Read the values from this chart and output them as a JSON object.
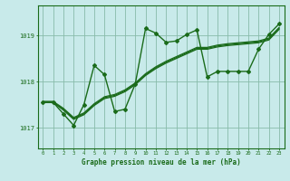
{
  "title": "Graphe pression niveau de la mer (hPa)",
  "background_color": "#c8eaea",
  "plot_bg_color": "#c8eaea",
  "grid_color": "#88bbaa",
  "line_color": "#1a6b1a",
  "xlim": [
    -0.5,
    23.5
  ],
  "ylim": [
    1016.55,
    1019.65
  ],
  "yticks": [
    1017,
    1018,
    1019
  ],
  "xticks": [
    0,
    1,
    2,
    3,
    4,
    5,
    6,
    7,
    8,
    9,
    10,
    11,
    12,
    13,
    14,
    15,
    16,
    17,
    18,
    19,
    20,
    21,
    22,
    23
  ],
  "series1_x": [
    0,
    1,
    2,
    3,
    4,
    5,
    6,
    7,
    8,
    9,
    10,
    11,
    12,
    13,
    14,
    15,
    16,
    17,
    18,
    19,
    20,
    21,
    22,
    23
  ],
  "series1_y": [
    1017.55,
    1017.55,
    1017.4,
    1017.2,
    1017.3,
    1017.5,
    1017.65,
    1017.7,
    1017.8,
    1017.95,
    1018.15,
    1018.3,
    1018.42,
    1018.52,
    1018.62,
    1018.72,
    1018.72,
    1018.77,
    1018.8,
    1018.82,
    1018.84,
    1018.86,
    1018.92,
    1019.15
  ],
  "series2_x": [
    0,
    1,
    2,
    3,
    4,
    5,
    6,
    7,
    8,
    9,
    10,
    11,
    12,
    13,
    14,
    15,
    16,
    17,
    18,
    19,
    20,
    21,
    22,
    23
  ],
  "series2_y": [
    1017.57,
    1017.57,
    1017.42,
    1017.22,
    1017.32,
    1017.52,
    1017.67,
    1017.72,
    1017.82,
    1017.97,
    1018.17,
    1018.32,
    1018.44,
    1018.54,
    1018.64,
    1018.74,
    1018.74,
    1018.79,
    1018.82,
    1018.84,
    1018.86,
    1018.88,
    1018.94,
    1019.17
  ],
  "series3_x": [
    0,
    1,
    2,
    3,
    4,
    5,
    6,
    7,
    8,
    9,
    10,
    11,
    12,
    13,
    14,
    15,
    16,
    17,
    18,
    19,
    20,
    21,
    22,
    23
  ],
  "series3_y": [
    1017.55,
    1017.55,
    1017.3,
    1017.05,
    1017.5,
    1018.35,
    1018.15,
    1017.35,
    1017.4,
    1017.95,
    1019.15,
    1019.05,
    1018.85,
    1018.88,
    1019.02,
    1019.12,
    1018.1,
    1018.22,
    1018.22,
    1018.22,
    1018.22,
    1018.7,
    1019.02,
    1019.25
  ],
  "series4_x": [
    0,
    1,
    2,
    3,
    4,
    5,
    6,
    7,
    8,
    9,
    10,
    11,
    12,
    13,
    14,
    15,
    16,
    17,
    18,
    19,
    20,
    21,
    22,
    23
  ],
  "series4_y": [
    1017.55,
    1017.55,
    1017.38,
    1017.18,
    1017.28,
    1017.48,
    1017.63,
    1017.68,
    1017.78,
    1017.93,
    1018.13,
    1018.28,
    1018.4,
    1018.5,
    1018.6,
    1018.7,
    1018.7,
    1018.75,
    1018.78,
    1018.8,
    1018.82,
    1018.84,
    1018.9,
    1019.13
  ]
}
